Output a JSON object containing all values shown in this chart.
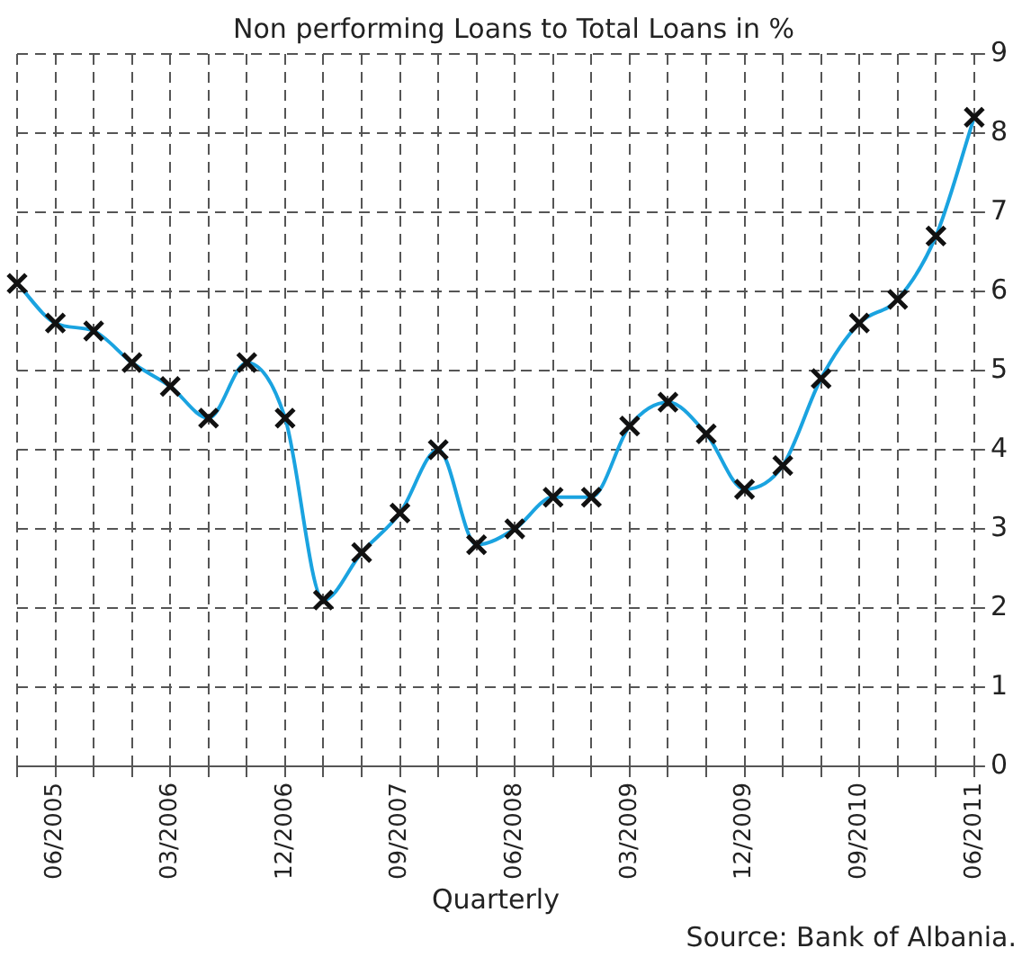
{
  "chart_data": {
    "type": "line",
    "title": "Non performing Loans to Total Loans in %",
    "xlabel": "Quarterly",
    "annotations": [
      "Source: Bank of Albania."
    ],
    "categories": [
      null,
      "06/2005",
      null,
      null,
      "03/2006",
      null,
      null,
      "12/2006",
      null,
      null,
      "09/2007",
      null,
      null,
      "06/2008",
      null,
      null,
      "03/2009",
      null,
      null,
      "12/2009",
      null,
      null,
      "09/2010",
      null,
      null,
      "06/2011"
    ],
    "series": [
      {
        "color": "#1aa3e0",
        "values": [
          6.1,
          5.6,
          5.5,
          5.1,
          4.8,
          4.4,
          5.1,
          4.4,
          2.1,
          2.7,
          3.2,
          4.0,
          2.8,
          3.0,
          3.4,
          3.4,
          4.3,
          4.6,
          4.2,
          3.5,
          3.8,
          4.9,
          5.6,
          5.9,
          6.7,
          8.2
        ]
      }
    ],
    "ylim": [
      0,
      9
    ],
    "yticks": [
      0,
      1,
      2,
      3,
      4,
      5,
      6,
      7,
      8,
      9
    ],
    "grid": true,
    "legend": false,
    "marker": "cross",
    "line_style": "solid"
  }
}
